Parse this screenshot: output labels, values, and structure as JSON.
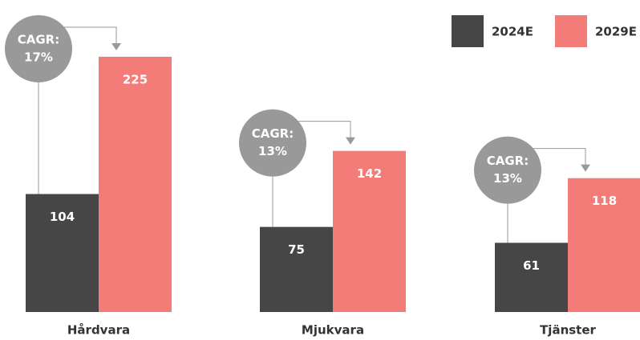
{
  "chart_data": {
    "type": "bar",
    "categories": [
      "Hårdvara",
      "Mjukvara",
      "Tjänster"
    ],
    "series": [
      {
        "name": "2024E",
        "color": "#464646",
        "values": [
          104,
          75,
          61
        ]
      },
      {
        "name": "2029E",
        "color": "#f47c78",
        "values": [
          225,
          142,
          118
        ]
      }
    ],
    "annotations": [
      [
        "CAGR:",
        "17%"
      ],
      [
        "CAGR:",
        "13%"
      ],
      [
        "CAGR:",
        "13%"
      ]
    ],
    "annotation_color": "#999999",
    "legend": "top-right"
  }
}
